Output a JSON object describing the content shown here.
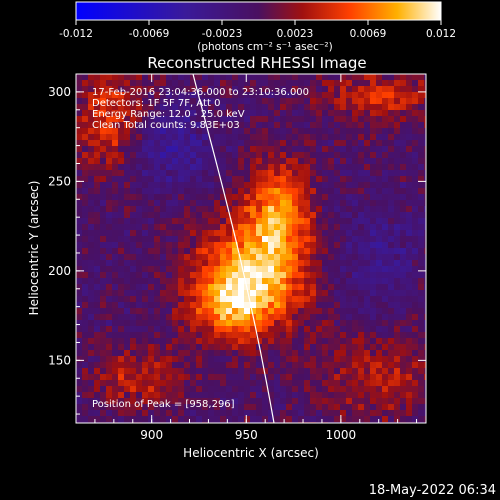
{
  "colorbar": {
    "tick_labels": [
      "-0.012",
      "-0.0069",
      "-0.0023",
      "0.0023",
      "0.0069",
      "0.012"
    ],
    "unit_label": "(photons cm⁻² s⁻¹ asec⁻²)",
    "range": [
      -0.012,
      0.012
    ]
  },
  "chart_data": {
    "type": "heatmap",
    "title": "Reconstructed RHESSI Image",
    "xlabel": "Heliocentric X (arcsec)",
    "ylabel": "Heliocentric Y (arcsec)",
    "x_ticks": [
      "900",
      "950",
      "1000"
    ],
    "y_ticks": [
      "150",
      "200",
      "250",
      "300"
    ],
    "xlim": [
      860,
      1045
    ],
    "ylim": [
      115,
      310
    ],
    "annotations": [
      "17-Feb-2016 23:04:36.000 to 23:10:36.000",
      "Detectors: 1F 5F 7F, Att 0",
      "Energy Range: 12.0 - 25.0 keV",
      "Clean     Total counts: 9.83E+03"
    ],
    "peak_label": "Position of Peak = [958,296]",
    "peak_position": [
      958,
      296
    ],
    "limb_line": "solar limb curve"
  },
  "footer": {
    "date": "18-May-2022 06:34"
  }
}
